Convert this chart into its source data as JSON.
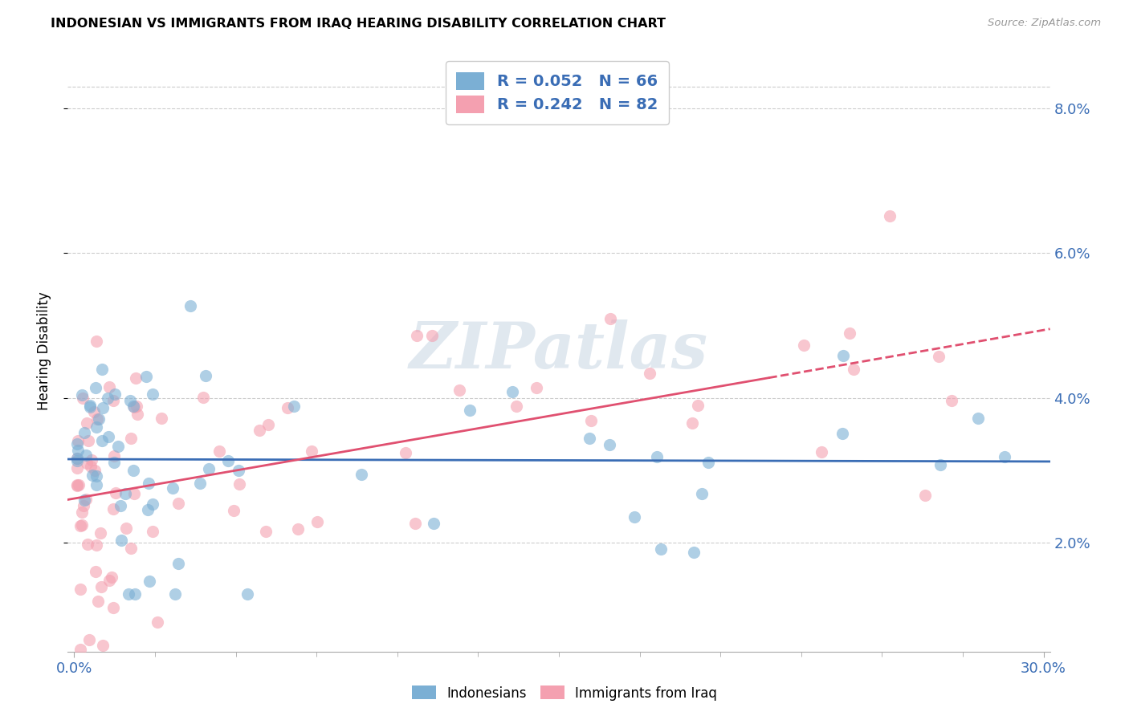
{
  "title": "INDONESIAN VS IMMIGRANTS FROM IRAQ HEARING DISABILITY CORRELATION CHART",
  "source": "Source: ZipAtlas.com",
  "ylabel": "Hearing Disability",
  "ytick_values": [
    0.02,
    0.04,
    0.06,
    0.08
  ],
  "xlim": [
    -0.002,
    0.302
  ],
  "ylim": [
    0.005,
    0.088
  ],
  "legend_indonesian": "R = 0.052   N = 66",
  "legend_iraq": "R = 0.242   N = 82",
  "color_indonesian": "#7BAFD4",
  "color_iraq": "#F4A0B0",
  "trendline_indonesian_color": "#3A6DB5",
  "trendline_iraq_color": "#E05070",
  "watermark": "ZIPatlas",
  "background_color": "#FFFFFF",
  "grid_color": "#CCCCCC"
}
